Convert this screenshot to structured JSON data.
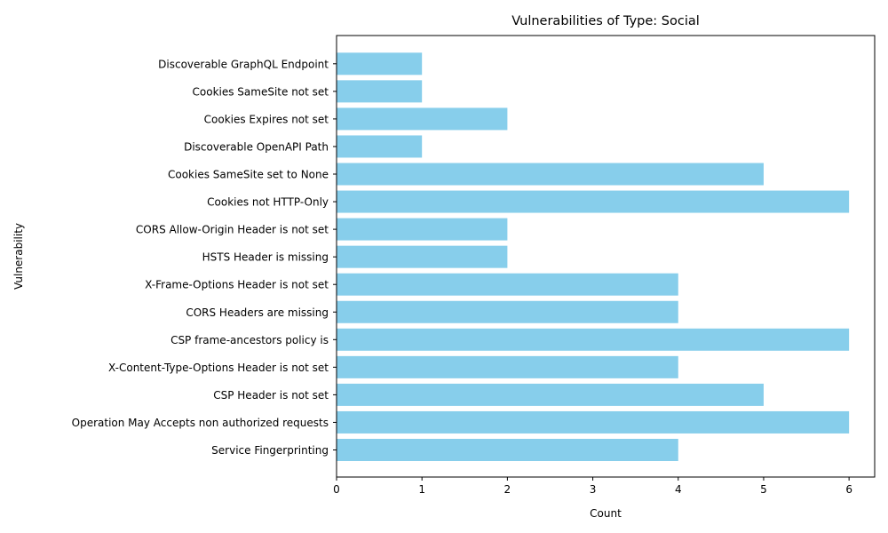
{
  "chart_data": {
    "type": "bar",
    "orientation": "horizontal",
    "title": "Vulnerabilities of Type: Social",
    "xlabel": "Count",
    "ylabel": "Vulnerability",
    "xlim": [
      0,
      6.3
    ],
    "xticks": [
      "0",
      "1",
      "2",
      "3",
      "4",
      "5",
      "6"
    ],
    "grid": false,
    "bar_color": "#87ceeb",
    "categories": [
      "Service Fingerprinting",
      "Operation May Accepts non authorized requests",
      "CSP Header is not set",
      "X-Content-Type-Options Header is not set",
      "CSP frame-ancestors policy is",
      "CORS Headers are missing",
      "X-Frame-Options Header is not set",
      "HSTS Header is missing",
      "CORS Allow-Origin Header is not set",
      "Cookies not HTTP-Only",
      "Cookies SameSite set to None",
      "Discoverable OpenAPI Path",
      "Cookies Expires not set",
      "Cookies SameSite not set",
      "Discoverable GraphQL Endpoint"
    ],
    "values": [
      4,
      6,
      5,
      4,
      6,
      4,
      4,
      2,
      2,
      6,
      5,
      1,
      2,
      1,
      1
    ]
  }
}
